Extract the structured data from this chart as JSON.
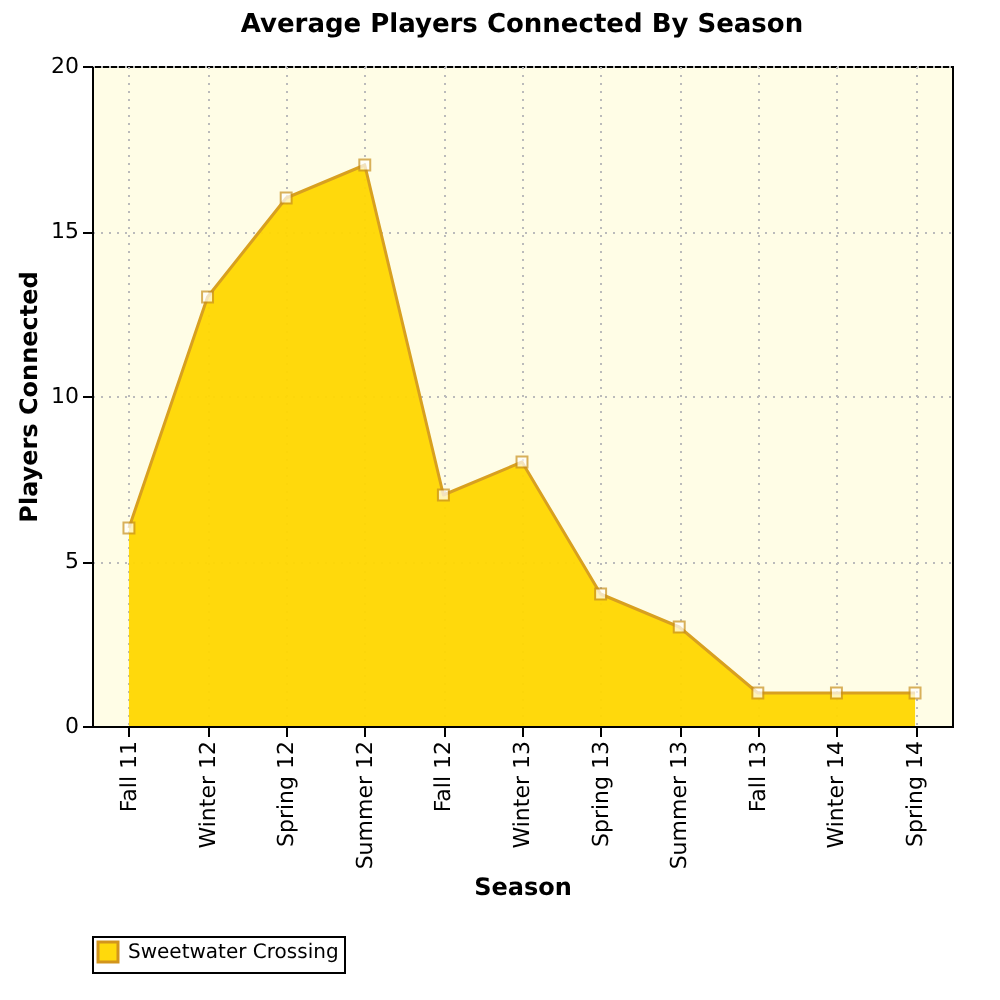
{
  "chart_data": {
    "type": "area",
    "title": "Average Players Connected By Season",
    "xlabel": "Season",
    "ylabel": "Players Connected",
    "categories": [
      "Fall 11",
      "Winter 12",
      "Spring 12",
      "Summer 12",
      "Fall 12",
      "Winter 13",
      "Spring 13",
      "Summer 13",
      "Fall 13",
      "Winter 14",
      "Spring 14"
    ],
    "series": [
      {
        "name": "Sweetwater Crossing",
        "color": "#ffd700",
        "values": [
          6,
          13,
          16,
          17,
          7,
          8,
          4,
          3,
          1,
          1,
          1
        ]
      }
    ],
    "ylim": [
      0,
      20
    ],
    "yticks": [
      0,
      5,
      10,
      15,
      20
    ],
    "grid": true,
    "legend": "bottom left",
    "marker": "square"
  }
}
